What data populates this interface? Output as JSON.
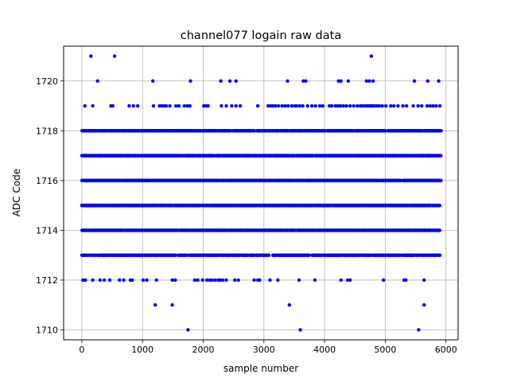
{
  "chart_data": {
    "type": "scatter",
    "title": "channel077 logain raw data",
    "xlabel": "sample number",
    "ylabel": "ADC Code",
    "xlim": [
      -300,
      6200
    ],
    "ylim": [
      1709.6,
      1721.4
    ],
    "xticks": [
      0,
      1000,
      2000,
      3000,
      4000,
      5000,
      6000
    ],
    "yticks": [
      1710,
      1712,
      1714,
      1716,
      1718,
      1720
    ],
    "grid": true,
    "marker_color": "#0000ff",
    "series": [
      {
        "name": "",
        "points_dense": [
          {
            "y": 1713,
            "x_start": 0,
            "x_end": 5900,
            "step": 14
          },
          {
            "y": 1714,
            "x_start": 0,
            "x_end": 5900,
            "step": 9
          },
          {
            "y": 1715,
            "x_start": 0,
            "x_end": 5900,
            "step": 8
          },
          {
            "y": 1716,
            "x_start": 0,
            "x_end": 5920,
            "step": 7
          },
          {
            "y": 1717,
            "x_start": 0,
            "x_end": 5920,
            "step": 8
          },
          {
            "y": 1718,
            "x_start": 0,
            "x_end": 5920,
            "step": 11
          }
        ],
        "points_sparse": [
          {
            "y": 1721,
            "x": [
              150,
              540,
              4770
            ]
          },
          {
            "y": 1720,
            "x": [
              260,
              1170,
              1790,
              2290,
              2440,
              2540,
              3390,
              3650,
              3690,
              4230,
              4270,
              4390,
              4690,
              4740,
              4800,
              5480,
              5700,
              5880
            ]
          },
          {
            "y": 1719,
            "x": [
              50,
              180,
              480,
              510,
              780,
              850,
              920,
              1180,
              1280,
              1320,
              1360,
              1390,
              1450,
              1550,
              1600,
              1690,
              1740,
              1780,
              2010,
              2040,
              2080,
              2300,
              2380,
              2470,
              2540,
              2610,
              2900,
              3070,
              3110,
              3150,
              3190,
              3240,
              3300,
              3350,
              3400,
              3460,
              3510,
              3540,
              3590,
              3640,
              3720,
              3790,
              3850,
              3920,
              3970,
              4080,
              4120,
              4180,
              4220,
              4260,
              4310,
              4360,
              4420,
              4480,
              4540,
              4590,
              4630,
              4670,
              4700,
              4730,
              4760,
              4790,
              4820,
              4860,
              4900,
              4950,
              5010,
              5090,
              5140,
              5210,
              5290,
              5350,
              5460,
              5540,
              5600,
              5690,
              5740,
              5790,
              5840,
              5900
            ]
          },
          {
            "y": 1712,
            "x": [
              20,
              60,
              180,
              300,
              370,
              460,
              620,
              690,
              800,
              830,
              1010,
              1070,
              1230,
              1490,
              1540,
              1860,
              1910,
              1990,
              2060,
              2110,
              2150,
              2200,
              2250,
              2280,
              2320,
              2380,
              2520,
              2580,
              2840,
              2900,
              2930,
              3100,
              3230,
              3580,
              3840,
              4270,
              4380,
              4420,
              4970,
              5310,
              5340,
              5640
            ]
          },
          {
            "y": 1711,
            "x": [
              1210,
              1490,
              3420,
              5640
            ]
          },
          {
            "y": 1710,
            "x": [
              1750,
              3600,
              5550
            ]
          }
        ]
      }
    ]
  }
}
